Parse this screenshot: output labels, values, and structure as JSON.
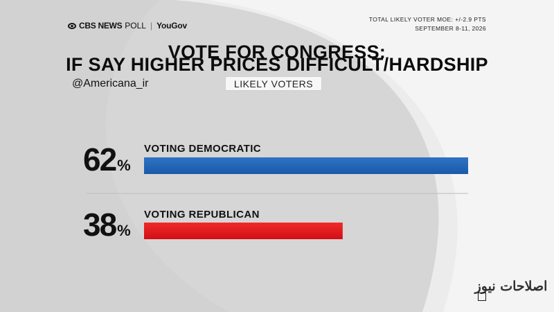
{
  "header": {
    "brand_cbs": "CBS NEWS",
    "brand_poll": "POLL",
    "brand_partner": "YouGov",
    "moe": "TOTAL LIKELY VOTER MOE: +/-2.9 PTS",
    "dates": "SEPTEMBER 8-11, 2026"
  },
  "handle": "@Americana_ir",
  "watermark": "اصلاحات نیوز",
  "colors": {
    "democratic": "#1f5fb0",
    "republican": "#e0161e"
  },
  "chart_data": {
    "type": "bar",
    "title": "VOTE FOR CONGRESS:",
    "subtitle": "IF SAY HIGHER PRICES DIFFICULT/HARDSHIP",
    "badge": "LIKELY VOTERS",
    "categories": [
      "VOTING DEMOCRATIC",
      "VOTING REPUBLICAN"
    ],
    "values": [
      62,
      38
    ],
    "display_values": [
      "62",
      "38"
    ],
    "unit": "%",
    "xlim": [
      0,
      62
    ]
  }
}
